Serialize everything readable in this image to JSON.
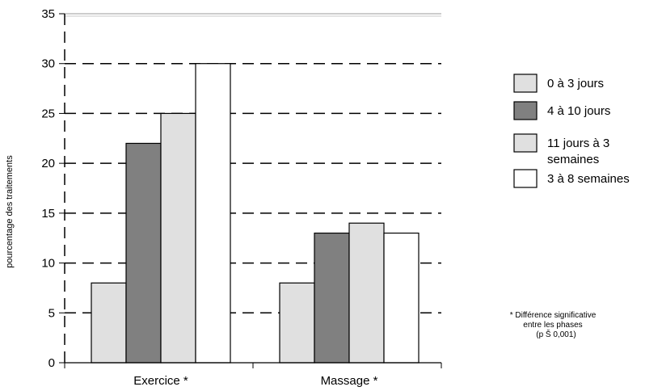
{
  "chart_data": {
    "type": "bar",
    "title": "",
    "xlabel": "",
    "ylabel": "pourcentage des traitements",
    "ylim": [
      0,
      35
    ],
    "yticks": [
      0,
      5,
      10,
      15,
      20,
      25,
      30,
      35
    ],
    "grid": true,
    "legend_position": "right",
    "categories": [
      "Exercice *",
      "Massage *"
    ],
    "series": [
      {
        "name": "0 à 3 jours",
        "values": [
          8,
          8
        ],
        "color": "#e0e0e0"
      },
      {
        "name": "4 à 10 jours",
        "values": [
          22,
          13
        ],
        "color": "#808080"
      },
      {
        "name": "11 jours à 3 semaines",
        "legend_lines": [
          "11 jours à 3",
          "semaines"
        ],
        "values": [
          25,
          14
        ],
        "color": "#e0e0e0"
      },
      {
        "name": "3 à 8 semaines",
        "values": [
          30,
          13
        ],
        "color": "#ffffff"
      }
    ],
    "annotation": [
      "* Différence significative",
      "entre les phases",
      "(p Š 0,001)"
    ]
  }
}
